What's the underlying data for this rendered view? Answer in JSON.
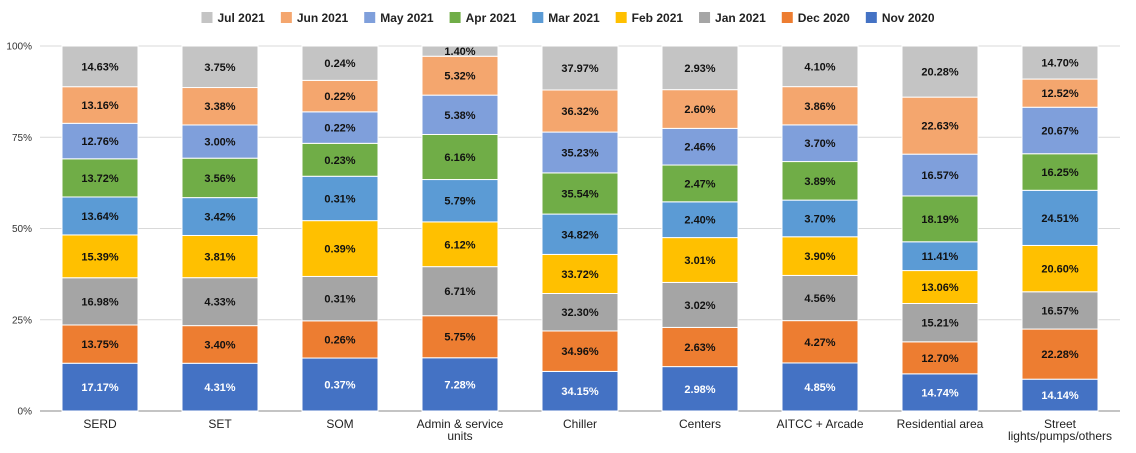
{
  "chart_data": {
    "type": "stacked-bar-100",
    "title": "",
    "xlabel": "",
    "ylabel": "",
    "ylim": [
      0,
      100
    ],
    "yticks": [
      "0%",
      "25%",
      "50%",
      "75%",
      "100%"
    ],
    "grid": true,
    "legend_position": "top",
    "categories": [
      "SERD",
      "SET",
      "SOM",
      "Admin & service units",
      "Chiller",
      "Centers",
      "AITCC + Arcade",
      "Residential area",
      "Street lights/pumps/others"
    ],
    "category_lines": [
      [
        "SERD"
      ],
      [
        "SET"
      ],
      [
        "SOM"
      ],
      [
        "Admin & service",
        "units"
      ],
      [
        "Chiller"
      ],
      [
        "Centers"
      ],
      [
        "AITCC + Arcade"
      ],
      [
        "Residential area"
      ],
      [
        "Street",
        "lights/pumps/others"
      ]
    ],
    "series": [
      {
        "name": "Nov 2020",
        "color": "#4472C4",
        "label_color": "#ffffff",
        "values": [
          17.17,
          4.31,
          0.37,
          7.28,
          34.15,
          2.98,
          4.85,
          14.74,
          14.14
        ]
      },
      {
        "name": "Dec 2020",
        "color": "#ED7D31",
        "label_color": "#111111",
        "values": [
          13.75,
          3.4,
          0.26,
          5.75,
          34.96,
          2.63,
          4.27,
          12.7,
          22.28
        ]
      },
      {
        "name": "Jan 2021",
        "color": "#A5A5A5",
        "label_color": "#111111",
        "values": [
          16.98,
          4.33,
          0.31,
          6.71,
          32.3,
          3.02,
          4.56,
          15.21,
          16.57
        ]
      },
      {
        "name": "Feb 2021",
        "color": "#FFC000",
        "label_color": "#111111",
        "values": [
          15.39,
          3.81,
          0.39,
          6.12,
          33.72,
          3.01,
          3.9,
          13.06,
          20.6
        ]
      },
      {
        "name": "Mar 2021",
        "color": "#5B9BD5",
        "label_color": "#111111",
        "values": [
          13.64,
          3.42,
          0.31,
          5.79,
          34.82,
          2.4,
          3.7,
          11.41,
          24.51
        ]
      },
      {
        "name": "Apr 2021",
        "color": "#70AD47",
        "label_color": "#111111",
        "values": [
          13.72,
          3.56,
          0.23,
          6.16,
          35.54,
          2.47,
          3.89,
          18.19,
          16.25
        ]
      },
      {
        "name": "May 2021",
        "color": "#7F9FDB",
        "label_color": "#111111",
        "values": [
          12.76,
          3.0,
          0.22,
          5.38,
          35.23,
          2.46,
          3.7,
          16.57,
          20.67
        ]
      },
      {
        "name": "Jun 2021",
        "color": "#F4A66E",
        "label_color": "#111111",
        "values": [
          13.16,
          3.38,
          0.22,
          5.32,
          36.32,
          2.6,
          3.86,
          22.63,
          12.52
        ]
      },
      {
        "name": "Jul 2021",
        "color": "#C4C4C4",
        "label_color": "#111111",
        "values": [
          14.63,
          3.75,
          0.24,
          1.4,
          37.97,
          2.93,
          4.1,
          20.28,
          14.7
        ]
      }
    ],
    "legend_order": [
      "Jul 2021",
      "Jun 2021",
      "May 2021",
      "Apr 2021",
      "Mar 2021",
      "Feb 2021",
      "Jan 2021",
      "Dec 2020",
      "Nov 2020"
    ]
  }
}
